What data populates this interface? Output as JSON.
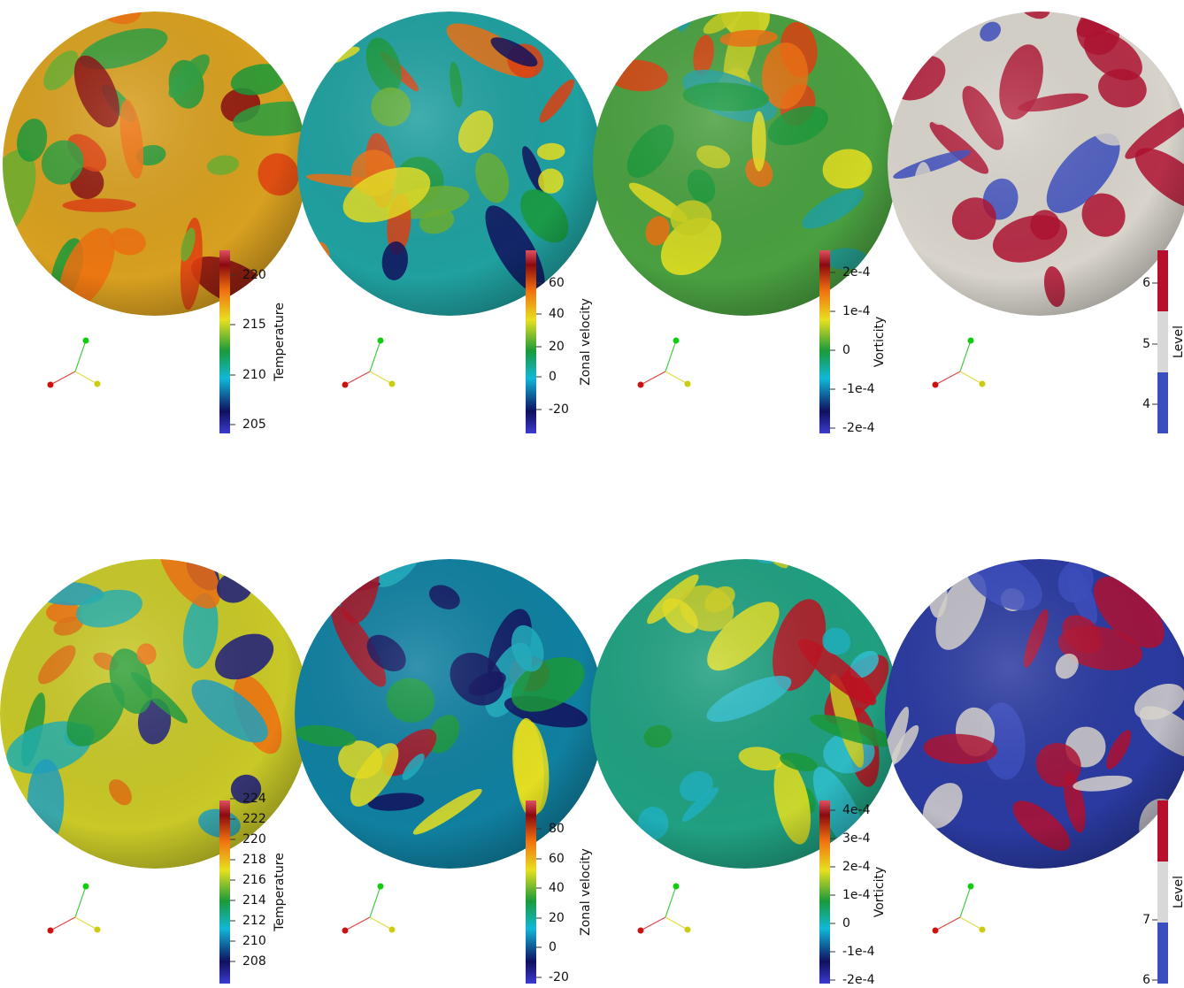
{
  "panels": [
    {
      "colorbar": {
        "title": "Temperature",
        "ticks": [
          "220",
          "215",
          "210",
          "205"
        ]
      }
    },
    {
      "colorbar": {
        "title": "Zonal velocity",
        "ticks": [
          "60",
          "40",
          "20",
          "0",
          "-20"
        ]
      }
    },
    {
      "colorbar": {
        "title": "Vorticity",
        "ticks": [
          "2e-4",
          "1e-4",
          "0",
          "-1e-4",
          "-2e-4"
        ]
      }
    },
    {
      "colorbar": {
        "title": "Level",
        "ticks": [
          "6",
          "5",
          "4"
        ]
      }
    },
    {
      "colorbar": {
        "title": "Temperature",
        "ticks": [
          "224",
          "222",
          "220",
          "218",
          "216",
          "214",
          "212",
          "210",
          "208"
        ]
      }
    },
    {
      "colorbar": {
        "title": "Zonal velocity",
        "ticks": [
          "80",
          "60",
          "40",
          "20",
          "0",
          "-20"
        ]
      }
    },
    {
      "colorbar": {
        "title": "Vorticity",
        "ticks": [
          "4e-4",
          "3e-4",
          "2e-4",
          "1e-4",
          "0",
          "-1e-4",
          "-2e-4"
        ]
      }
    },
    {
      "colorbar": {
        "title": "Level",
        "ticks": [
          "7",
          "6"
        ]
      }
    }
  ]
}
